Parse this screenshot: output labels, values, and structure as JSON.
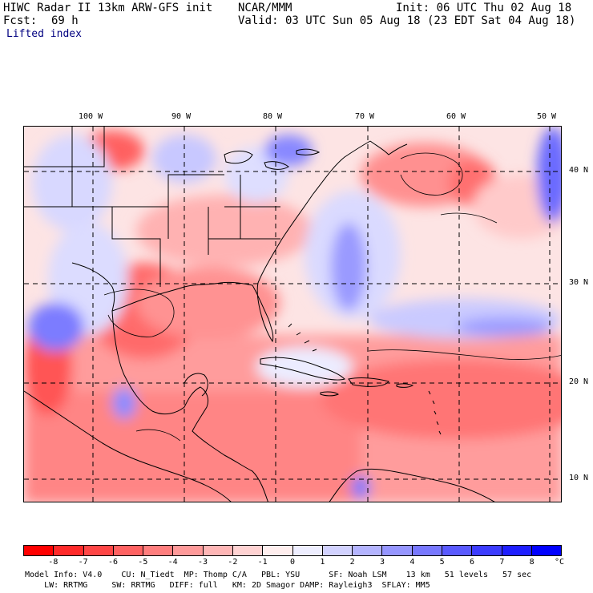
{
  "header": {
    "title": "HIWC Radar II 13km ARW-GFS init",
    "org": "NCAR/MMM",
    "init": "Init: 06 UTC Thu 02 Aug 18",
    "fcst_label": "Fcst:",
    "fcst_value": "69 h",
    "valid": "Valid: 03 UTC Sun 05 Aug 18 (23 EDT Sat 04 Aug 18)",
    "field": "Lifted index"
  },
  "map": {
    "lon_ticks": [
      "100 W",
      "90 W",
      "80 W",
      "70 W",
      "60 W",
      "50 W"
    ],
    "lat_ticks": [
      "40 N",
      "30 N",
      "20 N",
      "10 N"
    ]
  },
  "colorbar": {
    "labels": [
      "-8",
      "-7",
      "-6",
      "-5",
      "-4",
      "-3",
      "-2",
      "-1",
      "0",
      "1",
      "2",
      "3",
      "4",
      "5",
      "6",
      "7",
      "8"
    ],
    "unit": "°C",
    "colors": [
      "#ff0000",
      "#ff2a2a",
      "#ff4646",
      "#ff6262",
      "#ff7e7e",
      "#ff9a9a",
      "#ffb6b6",
      "#ffd2d2",
      "#ffeeee",
      "#eeeeff",
      "#d2d2ff",
      "#b4b4ff",
      "#9696ff",
      "#7878ff",
      "#5a5aff",
      "#3c3cff",
      "#1e1eff",
      "#0000ff"
    ]
  },
  "footer": {
    "line1": "Model Info: V4.0    CU: N_Tiedt  MP: Thomp C/A   PBL: YSU      SF: Noah LSM    13 km   51 levels   57 sec",
    "line2": "    LW: RRTMG     SW: RRTMG   DIFF: full   KM: 2D Smagor DAMP: Rayleigh3  SFLAY: MM5"
  }
}
